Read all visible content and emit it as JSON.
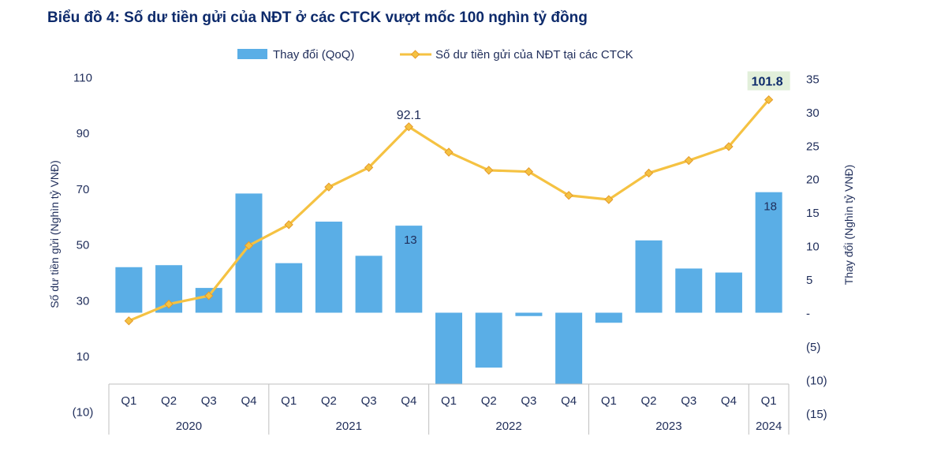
{
  "title": "Biểu đồ 4: Số dư tiền gửi của NĐT ở các CTCK vượt mốc 100 nghìn tỷ đồng",
  "chart_data": {
    "type": "bar+line",
    "categories": [
      "Q1",
      "Q2",
      "Q3",
      "Q4",
      "Q1",
      "Q2",
      "Q3",
      "Q4",
      "Q1",
      "Q2",
      "Q3",
      "Q4",
      "Q1",
      "Q2",
      "Q3",
      "Q4",
      "Q1"
    ],
    "years": [
      {
        "label": "2020",
        "count": 4
      },
      {
        "label": "2021",
        "count": 4
      },
      {
        "label": "2022",
        "count": 4
      },
      {
        "label": "2023",
        "count": 4
      },
      {
        "label": "2024",
        "count": 1
      }
    ],
    "series": [
      {
        "name": "Thay đổi (QoQ)",
        "type": "bar",
        "axis": "right",
        "color": "#5aaee6",
        "values": [
          6.8,
          7.1,
          3.7,
          17.8,
          7.4,
          13.6,
          8.5,
          13,
          -10.7,
          -8.2,
          -0.5,
          -10.6,
          -1.5,
          10.8,
          6.6,
          6,
          18
        ]
      },
      {
        "name": "Số dư tiền gửi của NĐT tại các CTCK",
        "type": "line",
        "axis": "left",
        "color": "#f5c242",
        "values": [
          22.5,
          28.5,
          31.5,
          49.5,
          57,
          70.5,
          77.5,
          92.1,
          83,
          76.5,
          76,
          67.5,
          66,
          75.5,
          80,
          85,
          101.8
        ]
      }
    ],
    "y_left": {
      "label": "Số dư tiền gửi (Nghìn tỷ VNĐ)",
      "min": -10,
      "max": 110,
      "ticks": [
        "110",
        "90",
        "70",
        "50",
        "30",
        "10",
        "(10)"
      ],
      "tick_values": [
        110,
        90,
        70,
        50,
        30,
        10,
        -10
      ]
    },
    "y_right": {
      "label": "Thay đổi (Nghìn tỷ VNĐ)",
      "min": -15,
      "max": 35,
      "ticks": [
        "35",
        "30",
        "25",
        "20",
        "15",
        "10",
        "5",
        "-",
        "(5)",
        "(10)",
        "(15)"
      ],
      "tick_values": [
        35,
        30,
        25,
        20,
        15,
        10,
        5,
        0,
        -5,
        -10,
        -15
      ]
    },
    "annotations": [
      {
        "series": 1,
        "index": 7,
        "text": "92.1"
      },
      {
        "series": 1,
        "index": 16,
        "text": "101.8",
        "highlight": "#e2efda"
      },
      {
        "series": 0,
        "index": 7,
        "text": "13"
      },
      {
        "series": 0,
        "index": 16,
        "text": "18"
      }
    ]
  }
}
